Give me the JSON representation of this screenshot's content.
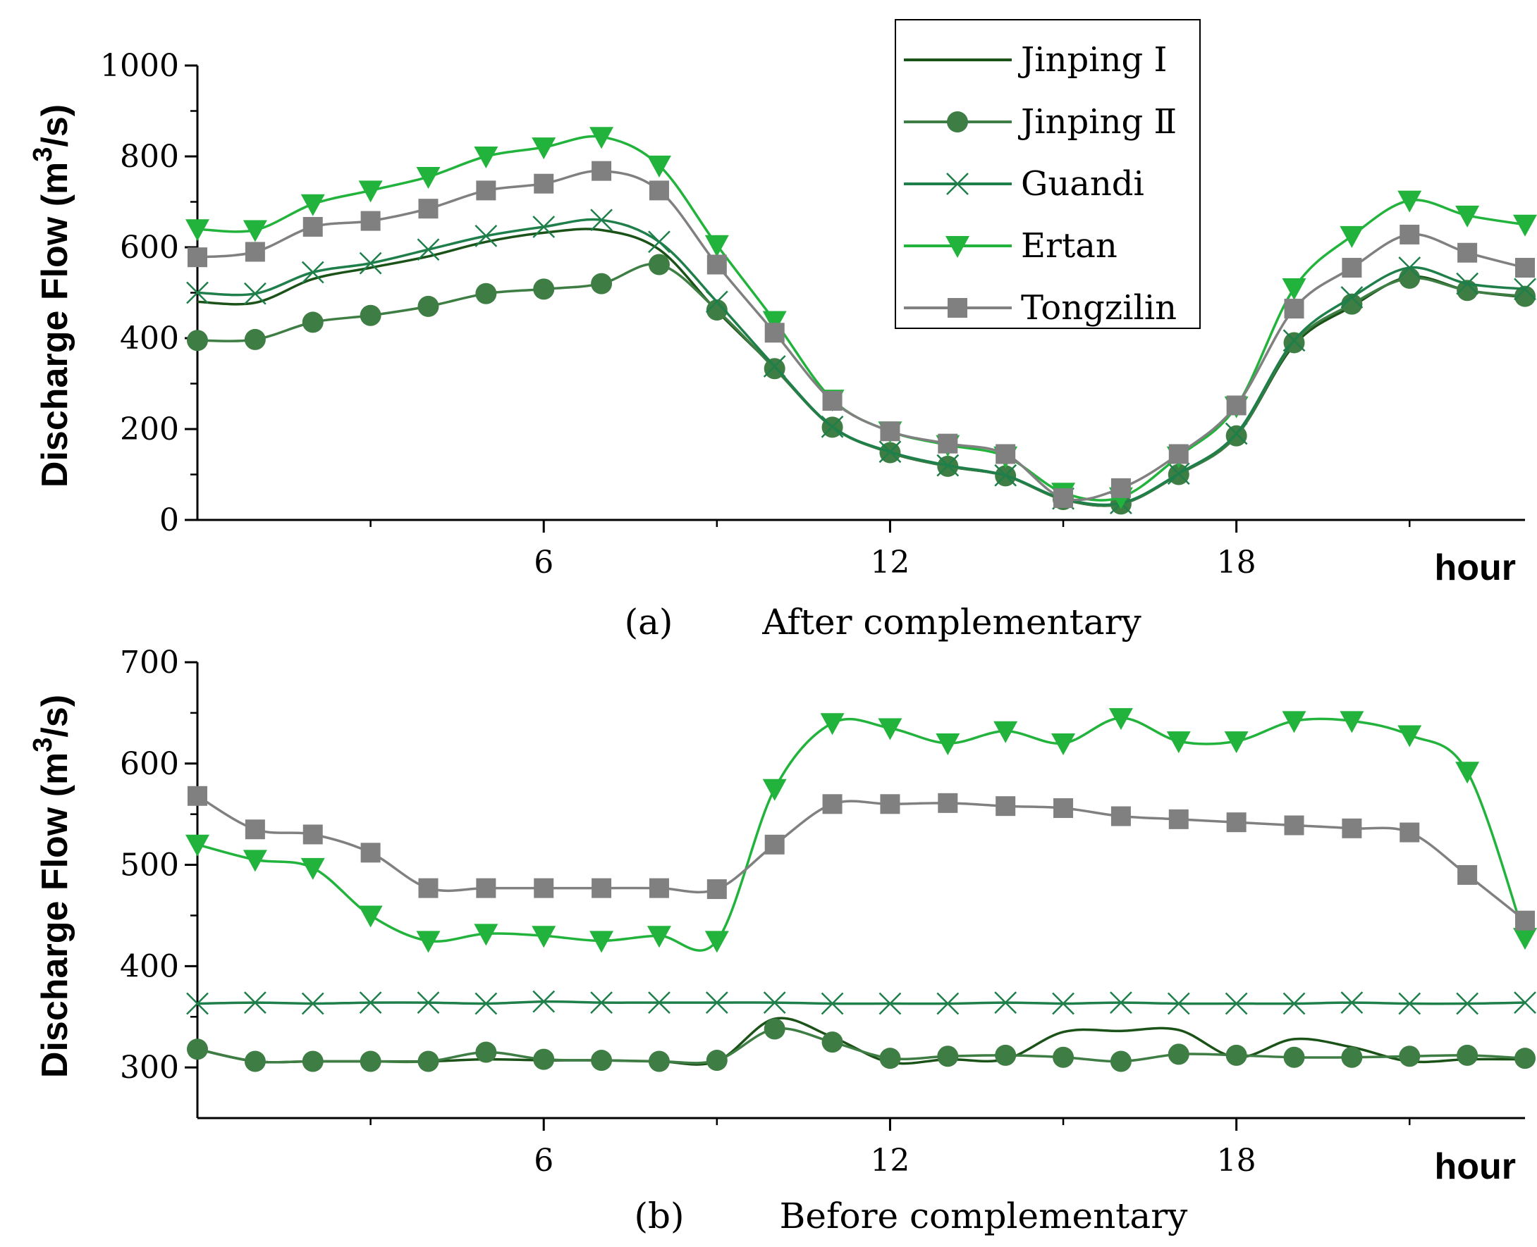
{
  "legend": [
    {
      "label": "Jinping Ⅰ",
      "color": "#1a5217",
      "marker": "none"
    },
    {
      "label": "Jinping Ⅱ",
      "color": "#3e7d43",
      "marker": "circle"
    },
    {
      "label": "Guandi",
      "color": "#1f7f4a",
      "marker": "x"
    },
    {
      "label": "Ertan",
      "color": "#22b33c",
      "marker": "triangle-down"
    },
    {
      "label": "Tongzilin",
      "color": "#808080",
      "marker": "square"
    }
  ],
  "chart_data": [
    {
      "type": "line",
      "panel": "a",
      "caption_letter": "(a)",
      "caption_text": "After complementary",
      "ylabel": "Discharge Flow (m",
      "ylabel_sup": "3",
      "ylabel_tail": "/s)",
      "xlabel": "hour",
      "xlim": [
        0,
        23
      ],
      "ylim": [
        0,
        1000
      ],
      "xticks": [
        "6",
        "12",
        "18"
      ],
      "yticks": [
        "0",
        "200",
        "400",
        "600",
        "800",
        "1000"
      ],
      "x": [
        0,
        1,
        2,
        3,
        4,
        5,
        6,
        7,
        8,
        9,
        10,
        11,
        12,
        13,
        14,
        15,
        16,
        17,
        18,
        19,
        20,
        21,
        22,
        23
      ],
      "series": [
        {
          "name": "Jinping Ⅰ",
          "values": [
            480,
            478,
            530,
            555,
            580,
            612,
            632,
            638,
            595,
            460,
            335,
            205,
            148,
            118,
            97,
            45,
            35,
            100,
            185,
            385,
            470,
            535,
            505,
            490
          ]
        },
        {
          "name": "Jinping Ⅱ",
          "values": [
            395,
            397,
            435,
            450,
            470,
            498,
            508,
            520,
            562,
            462,
            333,
            204,
            148,
            118,
            97,
            45,
            35,
            100,
            185,
            390,
            475,
            532,
            505,
            492
          ]
        },
        {
          "name": "Guandi",
          "values": [
            500,
            498,
            545,
            565,
            595,
            625,
            645,
            660,
            612,
            480,
            338,
            205,
            150,
            120,
            98,
            47,
            37,
            102,
            190,
            395,
            490,
            555,
            520,
            508
          ]
        },
        {
          "name": "Ertan",
          "values": [
            640,
            638,
            695,
            725,
            755,
            800,
            820,
            843,
            780,
            605,
            438,
            265,
            195,
            165,
            140,
            60,
            50,
            140,
            250,
            510,
            625,
            703,
            670,
            650
          ]
        },
        {
          "name": "Tongzilin",
          "values": [
            578,
            590,
            645,
            658,
            685,
            725,
            740,
            768,
            725,
            562,
            412,
            262,
            195,
            168,
            145,
            48,
            70,
            145,
            252,
            465,
            555,
            628,
            588,
            555
          ]
        }
      ]
    },
    {
      "type": "line",
      "panel": "b",
      "caption_letter": "(b)",
      "caption_text": "Before complementary",
      "ylabel": "Discharge Flow (m",
      "ylabel_sup": "3",
      "ylabel_tail": "/s)",
      "xlabel": "hour",
      "xlim": [
        0,
        23
      ],
      "ylim": [
        250,
        700
      ],
      "xticks": [
        "6",
        "12",
        "18"
      ],
      "yticks": [
        "300",
        "400",
        "500",
        "600",
        "700"
      ],
      "x": [
        0,
        1,
        2,
        3,
        4,
        5,
        6,
        7,
        8,
        9,
        10,
        11,
        12,
        13,
        14,
        15,
        16,
        17,
        18,
        19,
        20,
        21,
        22,
        23
      ],
      "series": [
        {
          "name": "Jinping Ⅰ",
          "values": [
            318,
            306,
            306,
            306,
            306,
            308,
            307,
            307,
            306,
            306,
            348,
            330,
            305,
            308,
            308,
            335,
            336,
            337,
            310,
            328,
            320,
            306,
            308,
            308
          ]
        },
        {
          "name": "Jinping Ⅱ",
          "values": [
            318,
            306,
            306,
            306,
            306,
            315,
            308,
            307,
            306,
            307,
            338,
            325,
            309,
            311,
            312,
            310,
            306,
            313,
            312,
            310,
            310,
            311,
            312,
            309
          ]
        },
        {
          "name": "Guandi",
          "values": [
            363,
            364,
            363,
            364,
            364,
            363,
            365,
            364,
            364,
            364,
            364,
            363,
            363,
            363,
            364,
            363,
            364,
            363,
            363,
            363,
            364,
            363,
            363,
            364
          ]
        },
        {
          "name": "Ertan",
          "values": [
            520,
            505,
            497,
            450,
            425,
            432,
            430,
            425,
            430,
            425,
            575,
            640,
            635,
            620,
            632,
            620,
            645,
            622,
            622,
            642,
            642,
            628,
            592,
            428
          ]
        },
        {
          "name": "Tongzilin",
          "values": [
            568,
            535,
            530,
            512,
            477,
            477,
            477,
            477,
            477,
            476,
            520,
            560,
            560,
            561,
            558,
            556,
            548,
            545,
            542,
            539,
            536,
            532,
            490,
            445
          ]
        }
      ]
    }
  ]
}
